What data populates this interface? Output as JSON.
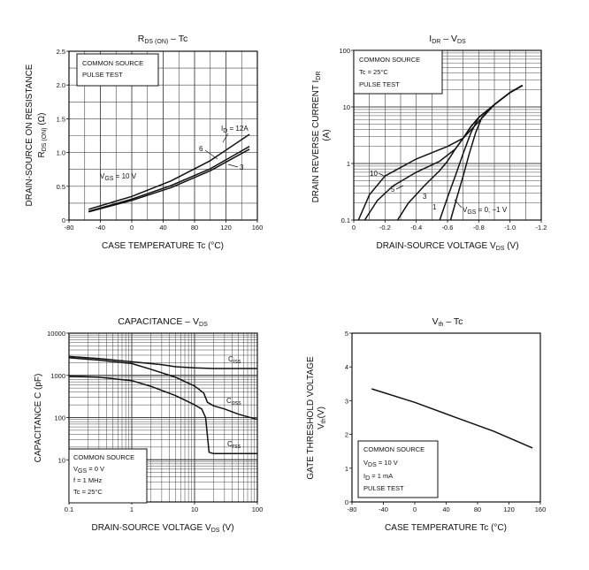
{
  "chart_data": [
    {
      "id": "rds",
      "type": "line",
      "title": "RDS (ON) – Tc",
      "xlabel": "CASE TEMPERATURE   Tc   (°C)",
      "ylabel": "DRAIN-SOURCE ON RESISTANCE   RDS (ON)   (Ω)",
      "xlim": [
        -80,
        160
      ],
      "ylim": [
        0,
        2.5
      ],
      "x_ticks": [
        -80,
        -40,
        0,
        40,
        80,
        120,
        160
      ],
      "y_ticks": [
        0,
        0.5,
        1.0,
        1.5,
        2.0,
        2.5
      ],
      "y_tick_labels": [
        "0",
        "0.5",
        "1.0",
        "1.5",
        "2.0",
        "2.5"
      ],
      "grid": true,
      "notes": [
        "COMMON SOURCE",
        "PULSE TEST"
      ],
      "series": [
        {
          "name": "ID = 12A",
          "x": [
            -55,
            0,
            50,
            100,
            150
          ],
          "y": [
            0.16,
            0.35,
            0.58,
            0.88,
            1.27
          ]
        },
        {
          "name": "6",
          "x": [
            -55,
            0,
            50,
            100,
            150
          ],
          "y": [
            0.13,
            0.31,
            0.51,
            0.76,
            1.09
          ]
        },
        {
          "name": "3",
          "x": [
            -55,
            0,
            50,
            100,
            150
          ],
          "y": [
            0.12,
            0.29,
            0.48,
            0.73,
            1.05
          ]
        }
      ],
      "annotations": [
        "VGS = 10 V",
        "ID = 12A",
        "6",
        "3"
      ]
    },
    {
      "id": "idr",
      "type": "line",
      "title": "IDR – VDS",
      "xlabel": "DRAIN-SOURCE VOLTAGE   VDS   (V)",
      "ylabel": "DRAIN REVERSE CURRENT   IDR   (A)",
      "xlim": [
        0,
        -1.2
      ],
      "ylim": [
        0.1,
        100
      ],
      "y_scale": "log",
      "x_ticks": [
        0,
        -0.2,
        -0.4,
        -0.6,
        -0.8,
        -1.0,
        -1.2
      ],
      "x_tick_labels": [
        "0",
        "-0.2",
        "-0.4",
        "-0.6",
        "-0.8",
        "-1.0",
        "-1.2"
      ],
      "y_ticks": [
        0.1,
        1,
        10,
        100
      ],
      "y_tick_labels": [
        "0.1",
        "1",
        "10",
        "100"
      ],
      "grid": true,
      "notes": [
        "COMMON SOURCE",
        "Tc = 25°C",
        "PULSE TEST"
      ],
      "series": [
        {
          "name": "10",
          "x": [
            -0.03,
            -0.1,
            -0.2,
            -0.4,
            -0.6,
            -0.7,
            -0.8,
            -0.9,
            -1.0,
            -1.08
          ],
          "y": [
            0.1,
            0.28,
            0.6,
            1.2,
            2.0,
            2.8,
            5.5,
            11,
            18,
            24
          ]
        },
        {
          "name": "5",
          "x": [
            -0.07,
            -0.15,
            -0.25,
            -0.4,
            -0.55,
            -0.65,
            -0.7,
            -0.75,
            -0.8,
            -0.9,
            -1.0,
            -1.08
          ],
          "y": [
            0.1,
            0.22,
            0.4,
            0.7,
            1.1,
            1.8,
            2.8,
            4.5,
            6.5,
            11,
            18,
            24
          ]
        },
        {
          "name": "3",
          "x": [
            -0.28,
            -0.35,
            -0.45,
            -0.55,
            -0.6,
            -0.65,
            -0.7,
            -0.75,
            -0.8,
            -0.9,
            -1.0,
            -1.08
          ],
          "y": [
            0.1,
            0.2,
            0.4,
            0.75,
            1.1,
            1.8,
            2.8,
            4.5,
            6.5,
            11,
            18,
            24
          ]
        },
        {
          "name": "1",
          "x": [
            -0.55,
            -0.6,
            -0.65,
            -0.7,
            -0.75,
            -0.8,
            -0.9,
            -1.0,
            -1.08
          ],
          "y": [
            0.1,
            0.25,
            0.6,
            1.5,
            3.5,
            6.5,
            11,
            18,
            24
          ]
        },
        {
          "name": "VGS = 0, -1 V",
          "x": [
            -0.62,
            -0.66,
            -0.7,
            -0.74,
            -0.78,
            -0.82,
            -0.9,
            -1.0,
            -1.08
          ],
          "y": [
            0.1,
            0.25,
            0.6,
            1.5,
            3.5,
            6.5,
            11,
            18,
            24
          ]
        }
      ],
      "annotations": [
        "10",
        "5",
        "3",
        "1",
        "VGS = 0, -1 V"
      ]
    },
    {
      "id": "cap",
      "type": "line",
      "title": "CAPACITANCE – VDS",
      "xlabel": "DRAIN-SOURCE VOLTAGE   VDS   (V)",
      "ylabel": "CAPACITANCE   C   (pF)",
      "xlim": [
        0.1,
        100
      ],
      "ylim": [
        1,
        10000
      ],
      "x_scale": "log",
      "y_scale": "log",
      "x_ticks": [
        0.1,
        1,
        10,
        100
      ],
      "x_tick_labels": [
        "0.1",
        "1",
        "10",
        "100"
      ],
      "y_ticks": [
        10,
        100,
        1000,
        10000
      ],
      "y_tick_labels": [
        "10",
        "100",
        "1000",
        "10000"
      ],
      "grid": true,
      "notes": [
        "COMMON SOURCE",
        "VGS = 0 V",
        "f = 1 MHz",
        "Tc = 25°C"
      ],
      "series": [
        {
          "name": "Ciss",
          "x": [
            0.1,
            0.3,
            1,
            3,
            5,
            10,
            20,
            30,
            50,
            100
          ],
          "y": [
            2800,
            2500,
            2100,
            1800,
            1600,
            1500,
            1450,
            1450,
            1450,
            1450
          ]
        },
        {
          "name": "Coss",
          "x": [
            0.1,
            0.3,
            1,
            2,
            5,
            10,
            14,
            16,
            20,
            30,
            50,
            100
          ],
          "y": [
            2600,
            2300,
            1900,
            1400,
            900,
            560,
            380,
            230,
            190,
            160,
            120,
            90
          ]
        },
        {
          "name": "Crss",
          "x": [
            0.1,
            0.3,
            1,
            2,
            5,
            10,
            13,
            15,
            17,
            20,
            30,
            50,
            100
          ],
          "y": [
            950,
            900,
            750,
            550,
            330,
            200,
            160,
            100,
            15,
            14,
            14,
            14,
            14
          ]
        }
      ],
      "annotations": [
        "Ciss",
        "Coss",
        "Crss"
      ]
    },
    {
      "id": "vth",
      "type": "line",
      "title": "Vth – Tc",
      "xlabel": "CASE TEMPERATURE   Tc   (°C)",
      "ylabel": "GATE THRESHOLD VOLTAGE   Vth   (V)",
      "xlim": [
        -80,
        160
      ],
      "ylim": [
        0,
        5
      ],
      "x_ticks": [
        -80,
        -40,
        0,
        40,
        80,
        120,
        160
      ],
      "y_ticks": [
        0,
        1,
        2,
        3,
        4,
        5
      ],
      "grid": false,
      "notes": [
        "COMMON SOURCE",
        "VDS = 10 V",
        "ID = 1 mA",
        "PULSE TEST"
      ],
      "series": [
        {
          "name": "Vth",
          "x": [
            -55,
            0,
            50,
            100,
            150
          ],
          "y": [
            3.35,
            2.95,
            2.52,
            2.1,
            1.6
          ]
        }
      ]
    }
  ],
  "labels": {
    "rds": {
      "title_main": "R",
      "title_sub": "DS (ON)",
      "title_tail": " – Tc",
      "xlabel": "CASE TEMPERATURE     Tc     (°C)",
      "ylabel_outer": "DRAIN-SOURCE ON RESISTANCE",
      "ylabel_inner_main": "R",
      "ylabel_inner_sub": "DS (ON)",
      "ylabel_inner_unit": "   (Ω)",
      "note1": "COMMON SOURCE",
      "note2": "PULSE TEST",
      "vgs_main": "V",
      "vgs_sub": "GS",
      "vgs_tail": " = 10 V",
      "id_main": "I",
      "id_sub": "D",
      "id_tail": " = 12A",
      "c6": "6",
      "c3": "3"
    },
    "idr": {
      "title_main": "I",
      "title_sub": "DR",
      "title_tail": " – V",
      "title_sub2": "DS",
      "xlabel_main": "DRAIN-SOURCE VOLTAGE     V",
      "xlabel_sub": "DS",
      "xlabel_unit": "     (V)",
      "ylabel_main": "DRAIN REVERSE CURRENT   ",
      "ylabel_sym": "I",
      "ylabel_sub": "DR",
      "ylabel_unit": "(A)",
      "note1": "COMMON SOURCE",
      "note2": "Tc = 25°C",
      "note3": "PULSE TEST",
      "c10": "10",
      "c5": "5",
      "c3": "3",
      "c1": "1",
      "vgs_main": "V",
      "vgs_sub": "GS",
      "vgs_tail": " = 0, −1 V"
    },
    "cap": {
      "title_main": "CAPACITANCE – V",
      "title_sub": "DS",
      "xlabel_main": "DRAIN-SOURCE VOLTAGE   V",
      "xlabel_sub": "DS",
      "xlabel_unit": "   (V)",
      "ylabel": "CAPACITANCE    C    (pF)",
      "note1": "COMMON SOURCE",
      "note2_main": "V",
      "note2_sub": "GS",
      "note2_tail": " = 0 V",
      "note3": "f = 1 MHz",
      "note4": "Tc = 25°C",
      "ciss_main": "C",
      "ciss_sub": "iss",
      "coss_main": "C",
      "coss_sub": "oss",
      "crss_main": "C",
      "crss_sub": "rss"
    },
    "vth": {
      "title_main": "V",
      "title_sub": "th",
      "title_tail": " – Tc",
      "xlabel": "CASE TEMPERATURE     Tc     (°C)",
      "ylabel_outer": "GATE THRESHOLD VOLTAGE",
      "ylabel_inner_main": "V",
      "ylabel_inner_sub": "th",
      "ylabel_inner_unit": "(V)",
      "note1": "COMMON SOURCE",
      "note2_main": "V",
      "note2_sub": "DS",
      "note2_tail": " = 10 V",
      "note3_main": "I",
      "note3_sub": "D",
      "note3_tail": " = 1 mA",
      "note4": "PULSE TEST"
    }
  }
}
